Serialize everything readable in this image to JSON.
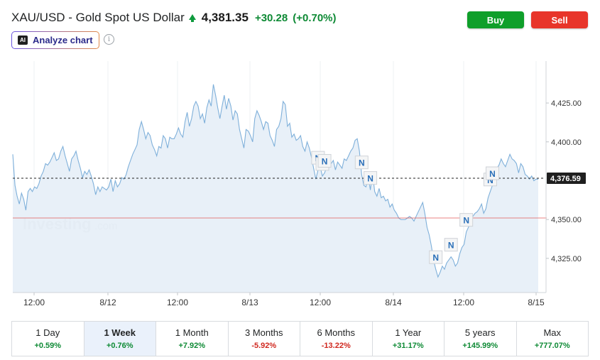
{
  "header": {
    "title": "XAU/USD - Gold Spot US Dollar",
    "price": "4,381.35",
    "change": "+30.28",
    "change_pct": "(+0.70%)"
  },
  "buttons": {
    "buy": "Buy",
    "sell": "Sell"
  },
  "analyze": {
    "badge": "AI",
    "label": "Analyze chart",
    "info": "i"
  },
  "chart_data": {
    "type": "area",
    "series": [
      {
        "values": [
          4392,
          4372,
          4365,
          4360,
          4367,
          4363,
          4356,
          4368,
          4370,
          4368,
          4371,
          4370,
          4373,
          4378,
          4381,
          4386,
          4385,
          4387,
          4390,
          4393,
          4388,
          4389,
          4394,
          4397,
          4391,
          4386,
          4381,
          4389,
          4391,
          4394,
          4388,
          4383,
          4377,
          4381,
          4379,
          4382,
          4378,
          4373,
          4366,
          4371,
          4368,
          4371,
          4370,
          4369,
          4371,
          4376,
          4368,
          4375,
          4371,
          4373,
          4377,
          4376,
          4379,
          4384,
          4388,
          4392,
          4395,
          4398,
          4408,
          4413,
          4408,
          4402,
          4406,
          4404,
          4398,
          4395,
          4391,
          4397,
          4396,
          4404,
          4402,
          4396,
          4403,
          4402,
          4402,
          4405,
          4409,
          4405,
          4403,
          4413,
          4419,
          4410,
          4415,
          4423,
          4426,
          4423,
          4415,
          4418,
          4412,
          4422,
          4427,
          4423,
          4437,
          4430,
          4422,
          4415,
          4423,
          4430,
          4421,
          4428,
          4423,
          4414,
          4420,
          4418,
          4408,
          4402,
          4396,
          4408,
          4407,
          4404,
          4400,
          4415,
          4420,
          4417,
          4413,
          4408,
          4413,
          4412,
          4404,
          4401,
          4397,
          4408,
          4410,
          4415,
          4426,
          4424,
          4410,
          4412,
          4403,
          4405,
          4401,
          4402,
          4404,
          4397,
          4394,
          4400,
          4396,
          4390,
          4383,
          4376,
          4382,
          4384,
          4378,
          4380,
          4384,
          4387,
          4386,
          4388,
          4382,
          4387,
          4385,
          4383,
          4389,
          4388,
          4391,
          4394,
          4396,
          4401,
          4402,
          4394,
          4379,
          4372,
          4371,
          4378,
          4369,
          4380,
          4368,
          4365,
          4370,
          4364,
          4365,
          4362,
          4363,
          4358,
          4360,
          4356,
          4354,
          4351,
          4350,
          4350,
          4350,
          4351,
          4352,
          4351,
          4349,
          4352,
          4355,
          4358,
          4361,
          4354,
          4345,
          4340,
          4333,
          4324,
          4318,
          4313,
          4316,
          4320,
          4318,
          4322,
          4324,
          4326,
          4324,
          4320,
          4322,
          4328,
          4332,
          4334,
          4342,
          4345,
          4350,
          4352,
          4354,
          4355,
          4357,
          4360,
          4354,
          4357,
          4364,
          4368,
          4372,
          4378,
          4383,
          4385,
          4389,
          4386,
          4384,
          4388,
          4392,
          4389,
          4388,
          4386,
          4380,
          4386,
          4384,
          4379,
          4378,
          4376,
          4378,
          4375,
          4376,
          4376
        ]
      }
    ],
    "y_ticks": [
      "4,425.00",
      "4,400.00",
      "4,350.00",
      "4,325.00"
    ],
    "y_tick_values": [
      4425,
      4400,
      4350,
      4325
    ],
    "x_ticks": [
      "12:00",
      "8/12",
      "12:00",
      "8/13",
      "12:00",
      "8/14",
      "12:00",
      "8/15"
    ],
    "current_value": 4376.59,
    "current_label": "4,376.59",
    "reference_value": 4351,
    "ylim": [
      4303,
      4452
    ],
    "grid": "vertical",
    "watermark": {
      "brand": "Investing",
      "suffix": ".com"
    },
    "news_markers": [
      {
        "label": "N",
        "index": 140
      },
      {
        "label": "N",
        "index": 142
      },
      {
        "label": "N",
        "index": 143
      },
      {
        "label": "N",
        "index": 160
      },
      {
        "label": "N",
        "index": 164
      },
      {
        "label": "N",
        "index": 194
      },
      {
        "label": "N",
        "index": 201
      },
      {
        "label": "N",
        "index": 208
      },
      {
        "label": "N",
        "index": 219
      },
      {
        "label": "N",
        "index": 220
      }
    ],
    "colors": {
      "line": "#7fb0da",
      "fill": "#e6eef7",
      "current": "#222222",
      "reference": "#e05a5a"
    }
  },
  "periods": [
    {
      "label": "1 Day",
      "change": "+0.59%",
      "direction": "up"
    },
    {
      "label": "1 Week",
      "change": "+0.76%",
      "direction": "up",
      "active": true
    },
    {
      "label": "1 Month",
      "change": "+7.92%",
      "direction": "up"
    },
    {
      "label": "3 Months",
      "change": "-5.92%",
      "direction": "down"
    },
    {
      "label": "6 Months",
      "change": "-13.22%",
      "direction": "down"
    },
    {
      "label": "1 Year",
      "change": "+31.17%",
      "direction": "up"
    },
    {
      "label": "5 years",
      "change": "+145.99%",
      "direction": "up"
    },
    {
      "label": "Max",
      "change": "+777.07%",
      "direction": "up"
    }
  ]
}
